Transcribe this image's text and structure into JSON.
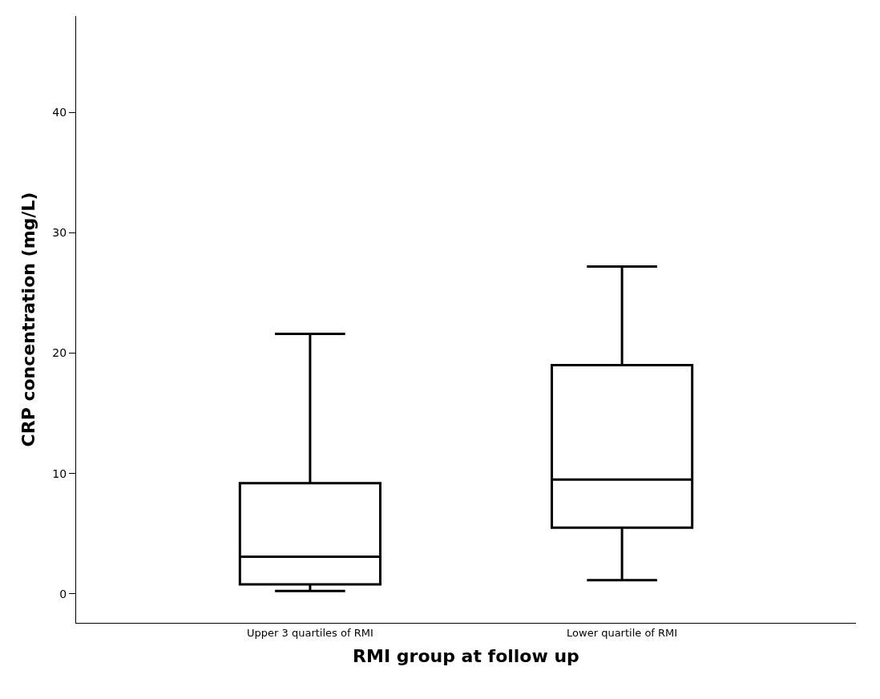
{
  "chart_data": {
    "type": "box",
    "xlabel": "RMI group at follow up",
    "ylabel": "CRP concentration (mg/L)",
    "categories": [
      "Upper 3 quartiles of RMI",
      "Lower quartile of RMI"
    ],
    "boxes": [
      {
        "low": 0.25,
        "q1": 0.8,
        "median": 3.1,
        "q3": 9.2,
        "high": 21.6
      },
      {
        "low": 1.15,
        "q1": 5.5,
        "median": 9.5,
        "q3": 19.0,
        "high": 27.2
      }
    ],
    "color": "#000000",
    "ylim": [
      -2.4,
      48
    ],
    "yticks": [
      0,
      10,
      20,
      30,
      40
    ]
  }
}
